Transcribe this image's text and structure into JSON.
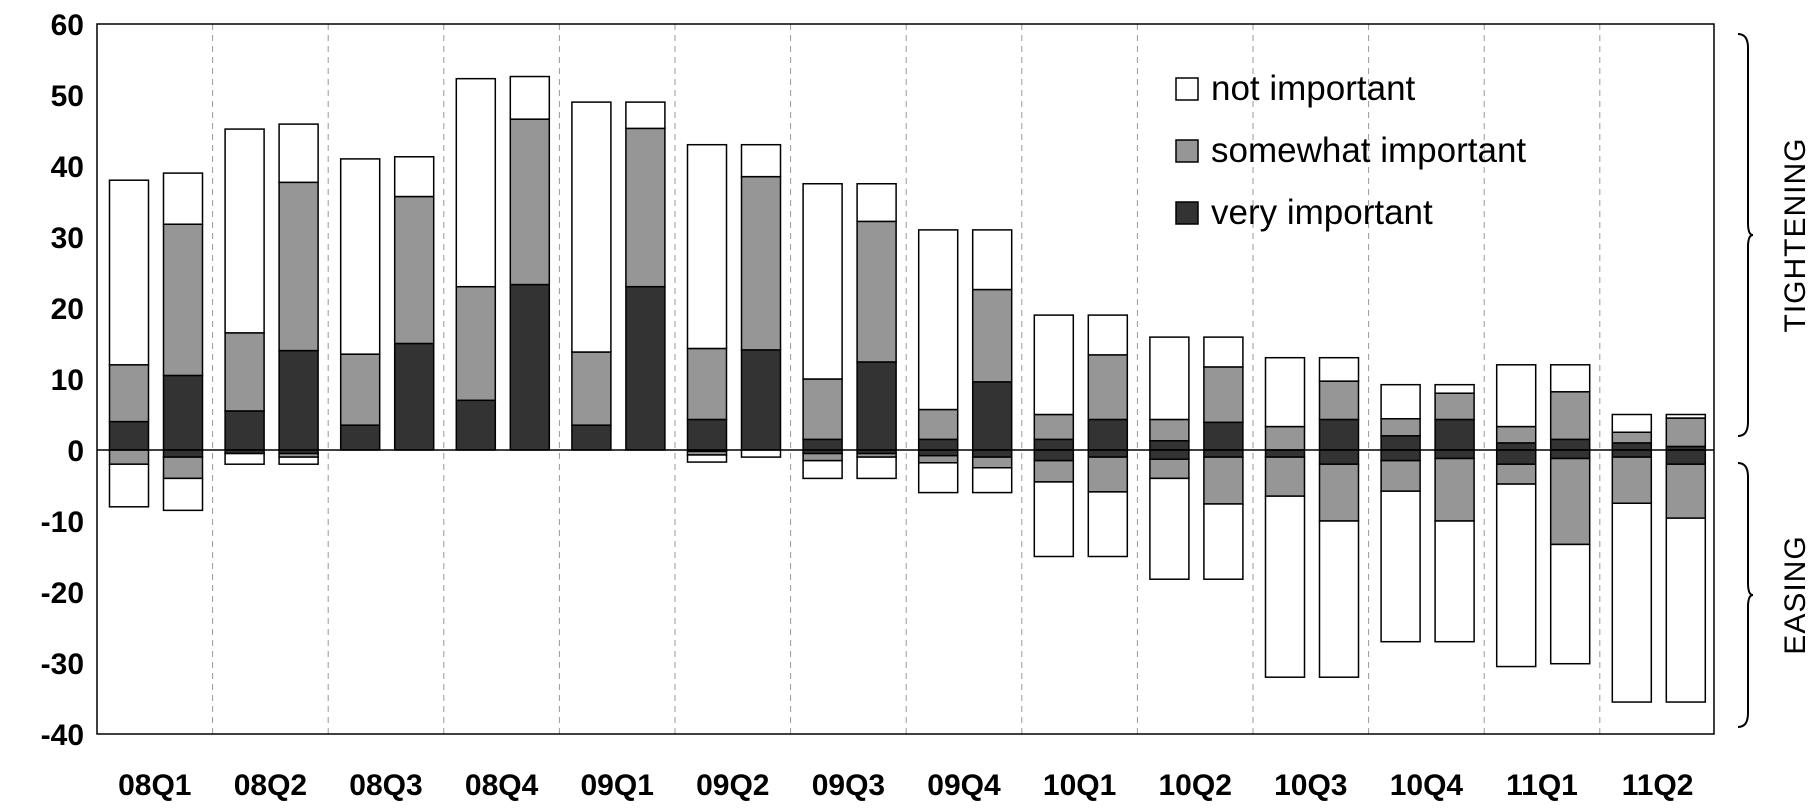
{
  "chart_data": {
    "type": "bar",
    "stacked": true,
    "categories": [
      "08Q1",
      "08Q2",
      "08Q3",
      "08Q4",
      "09Q1",
      "09Q2",
      "09Q3",
      "09Q4",
      "10Q1",
      "10Q2",
      "10Q3",
      "10Q4",
      "11Q1",
      "11Q2"
    ],
    "bars_per_category": 2,
    "ylim": [
      -40,
      60
    ],
    "yticks": [
      60,
      50,
      40,
      30,
      20,
      10,
      0,
      -10,
      -20,
      -30,
      -40
    ],
    "grid": "vertical dashed separators between categories",
    "legend": {
      "placement": "top-right",
      "entries": [
        "not important",
        "somewhat important",
        "very important"
      ]
    },
    "colors": {
      "not important": "#ffffff",
      "somewhat important": "#969696",
      "very important": "#333333"
    },
    "side_labels": {
      "positive": "TIGHTENING",
      "negative": "EASING"
    },
    "bars": [
      {
        "category": "08Q1",
        "positive": {
          "very important": 4,
          "somewhat important": 8,
          "not important": 26
        },
        "negative": {
          "very important": 0,
          "somewhat important": 2,
          "not important": 6
        }
      },
      {
        "category": "08Q1",
        "positive": {
          "very important": 10.5,
          "somewhat important": 21.3,
          "not important": 7.2
        },
        "negative": {
          "very important": 1,
          "somewhat important": 3,
          "not important": 4.5
        }
      },
      {
        "category": "08Q2",
        "positive": {
          "very important": 5.5,
          "somewhat important": 11,
          "not important": 28.7
        },
        "negative": {
          "very important": 0.5,
          "somewhat important": 0,
          "not important": 1.5
        }
      },
      {
        "category": "08Q2",
        "positive": {
          "very important": 14,
          "somewhat important": 23.7,
          "not important": 8.2
        },
        "negative": {
          "very important": 0.5,
          "somewhat important": 0.5,
          "not important": 1
        }
      },
      {
        "category": "08Q3",
        "positive": {
          "very important": 3.5,
          "somewhat important": 10,
          "not important": 27.5
        },
        "negative": {
          "very important": 0,
          "somewhat important": 0,
          "not important": 0
        }
      },
      {
        "category": "08Q3",
        "positive": {
          "very important": 15,
          "somewhat important": 20.7,
          "not important": 5.6
        },
        "negative": {
          "very important": 0,
          "somewhat important": 0,
          "not important": 0
        }
      },
      {
        "category": "08Q4",
        "positive": {
          "very important": 7,
          "somewhat important": 16,
          "not important": 29.3
        },
        "negative": {
          "very important": 0,
          "somewhat important": 0,
          "not important": 0
        }
      },
      {
        "category": "08Q4",
        "positive": {
          "very important": 23.3,
          "somewhat important": 23.3,
          "not important": 6
        },
        "negative": {
          "very important": 0,
          "somewhat important": 0,
          "not important": 0
        }
      },
      {
        "category": "09Q1",
        "positive": {
          "very important": 3.5,
          "somewhat important": 10.3,
          "not important": 35.2
        },
        "negative": {
          "very important": 0,
          "somewhat important": 0,
          "not important": 0
        }
      },
      {
        "category": "09Q1",
        "positive": {
          "very important": 23,
          "somewhat important": 22.3,
          "not important": 3.7
        },
        "negative": {
          "very important": 0,
          "somewhat important": 0,
          "not important": 0
        }
      },
      {
        "category": "09Q2",
        "positive": {
          "very important": 4.3,
          "somewhat important": 10,
          "not important": 28.7
        },
        "negative": {
          "very important": 0.2,
          "somewhat important": 0.5,
          "not important": 1
        }
      },
      {
        "category": "09Q2",
        "positive": {
          "very important": 14.1,
          "somewhat important": 24.4,
          "not important": 4.5
        },
        "negative": {
          "very important": 0,
          "somewhat important": 0,
          "not important": 1
        }
      },
      {
        "category": "09Q3",
        "positive": {
          "very important": 1.5,
          "somewhat important": 8.5,
          "not important": 27.5
        },
        "negative": {
          "very important": 0.5,
          "somewhat important": 1,
          "not important": 2.5
        }
      },
      {
        "category": "09Q3",
        "positive": {
          "very important": 12.4,
          "somewhat important": 19.8,
          "not important": 5.3
        },
        "negative": {
          "very important": 0.5,
          "somewhat important": 0.5,
          "not important": 3
        }
      },
      {
        "category": "09Q4",
        "positive": {
          "very important": 1.5,
          "somewhat important": 4.2,
          "not important": 25.3
        },
        "negative": {
          "very important": 0.8,
          "somewhat important": 1,
          "not important": 4.2
        }
      },
      {
        "category": "09Q4",
        "positive": {
          "very important": 9.6,
          "somewhat important": 13,
          "not important": 8.4
        },
        "negative": {
          "very important": 1,
          "somewhat important": 1.5,
          "not important": 3.5
        }
      },
      {
        "category": "10Q1",
        "positive": {
          "very important": 1.5,
          "somewhat important": 3.5,
          "not important": 14
        },
        "negative": {
          "very important": 1.5,
          "somewhat important": 3,
          "not important": 10.5
        }
      },
      {
        "category": "10Q1",
        "positive": {
          "very important": 4.3,
          "somewhat important": 9.1,
          "not important": 5.6
        },
        "negative": {
          "very important": 1,
          "somewhat important": 4.9,
          "not important": 9.1
        }
      },
      {
        "category": "10Q2",
        "positive": {
          "very important": 1.3,
          "somewhat important": 3,
          "not important": 11.6
        },
        "negative": {
          "very important": 1.3,
          "somewhat important": 2.7,
          "not important": 14.2
        }
      },
      {
        "category": "10Q2",
        "positive": {
          "very important": 3.9,
          "somewhat important": 7.8,
          "not important": 4.2
        },
        "negative": {
          "very important": 1,
          "somewhat important": 6.6,
          "not important": 10.6
        }
      },
      {
        "category": "10Q3",
        "positive": {
          "very important": 0,
          "somewhat important": 3.3,
          "not important": 9.7
        },
        "negative": {
          "very important": 1,
          "somewhat important": 5.5,
          "not important": 25.5
        }
      },
      {
        "category": "10Q3",
        "positive": {
          "very important": 4.3,
          "somewhat important": 5.4,
          "not important": 3.3
        },
        "negative": {
          "very important": 2,
          "somewhat important": 8,
          "not important": 22
        }
      },
      {
        "category": "10Q4",
        "positive": {
          "very important": 2,
          "somewhat important": 2.4,
          "not important": 4.8
        },
        "negative": {
          "very important": 1.5,
          "somewhat important": 4.3,
          "not important": 21.2
        }
      },
      {
        "category": "10Q4",
        "positive": {
          "very important": 4.3,
          "somewhat important": 3.7,
          "not important": 1.2
        },
        "negative": {
          "very important": 1.2,
          "somewhat important": 8.8,
          "not important": 17
        }
      },
      {
        "category": "11Q1",
        "positive": {
          "very important": 1,
          "somewhat important": 2.3,
          "not important": 8.7
        },
        "negative": {
          "very important": 2,
          "somewhat important": 2.8,
          "not important": 25.7
        }
      },
      {
        "category": "11Q1",
        "positive": {
          "very important": 1.5,
          "somewhat important": 6.7,
          "not important": 3.8
        },
        "negative": {
          "very important": 1.2,
          "somewhat important": 12.1,
          "not important": 16.8
        }
      },
      {
        "category": "11Q2",
        "positive": {
          "very important": 1,
          "somewhat important": 1.5,
          "not important": 2.5
        },
        "negative": {
          "very important": 1,
          "somewhat important": 6.5,
          "not important": 28
        }
      },
      {
        "category": "11Q2",
        "positive": {
          "very important": 0.5,
          "somewhat important": 4,
          "not important": 0.5
        },
        "negative": {
          "very important": 2,
          "somewhat important": 7.6,
          "not important": 25.9
        }
      }
    ]
  }
}
